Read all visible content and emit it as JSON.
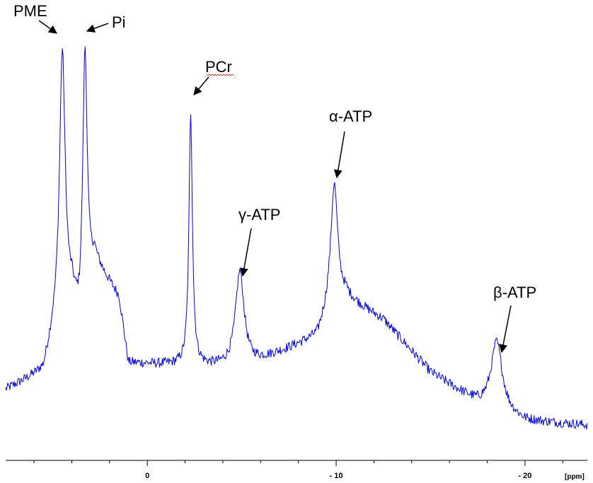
{
  "chart_data": {
    "type": "line",
    "title": "",
    "xlabel": "[ppm]",
    "ylabel": "",
    "x_axis": {
      "reversed": true,
      "xlim": [
        7.5,
        -23.3
      ],
      "major_ticks": [
        {
          "value": 0,
          "label": "0"
        },
        {
          "value": -10,
          "label": "- 10"
        },
        {
          "value": -20,
          "label": "- 20"
        }
      ],
      "minor_tick_step": 2
    },
    "ylim": [
      0,
      100
    ],
    "grid": false,
    "line_color": "#0000dd",
    "peaks": [
      {
        "name": "PME",
        "ppm": 4.5,
        "height": 93,
        "width": 0.18
      },
      {
        "name": "Pi",
        "ppm": 3.3,
        "height": 93,
        "width": 0.14
      },
      {
        "name": "PCr",
        "ppm": -2.3,
        "height": 79,
        "width": 0.11
      },
      {
        "name": "γ-ATP",
        "ppm": -4.9,
        "height": 43,
        "width": 0.28
      },
      {
        "name": "α-ATP",
        "ppm": -9.9,
        "height": 63,
        "width": 0.22
      },
      {
        "name": "β-ATP",
        "ppm": -18.5,
        "height": 27,
        "width": 0.36
      }
    ],
    "baseline": [
      {
        "ppm": 7.5,
        "value": 16
      },
      {
        "ppm": 5.5,
        "value": 20
      },
      {
        "ppm": 5.0,
        "value": 28
      },
      {
        "ppm": 4.0,
        "value": 36
      },
      {
        "ppm": 3.6,
        "value": 30
      },
      {
        "ppm": 2.8,
        "value": 45
      },
      {
        "ppm": 1.5,
        "value": 37
      },
      {
        "ppm": 1.0,
        "value": 22
      },
      {
        "ppm": -5.0,
        "value": 21
      },
      {
        "ppm": -9.0,
        "value": 28
      },
      {
        "ppm": -9.6,
        "value": 34
      },
      {
        "ppm": -10.5,
        "value": 37
      },
      {
        "ppm": -12.5,
        "value": 32
      },
      {
        "ppm": -15.0,
        "value": 20
      },
      {
        "ppm": -17.5,
        "value": 13
      },
      {
        "ppm": -20.0,
        "value": 9
      },
      {
        "ppm": -23.3,
        "value": 8
      }
    ],
    "annotations": [
      {
        "text": "PME",
        "peak": "PME"
      },
      {
        "text": "Pi",
        "peak": "Pi"
      },
      {
        "text": "PCr",
        "peak": "PCr"
      },
      {
        "text": "γ-ATP",
        "peak": "γ-ATP"
      },
      {
        "text": "α-ATP",
        "peak": "α-ATP"
      },
      {
        "text": "β-ATP",
        "peak": "β-ATP"
      }
    ]
  }
}
